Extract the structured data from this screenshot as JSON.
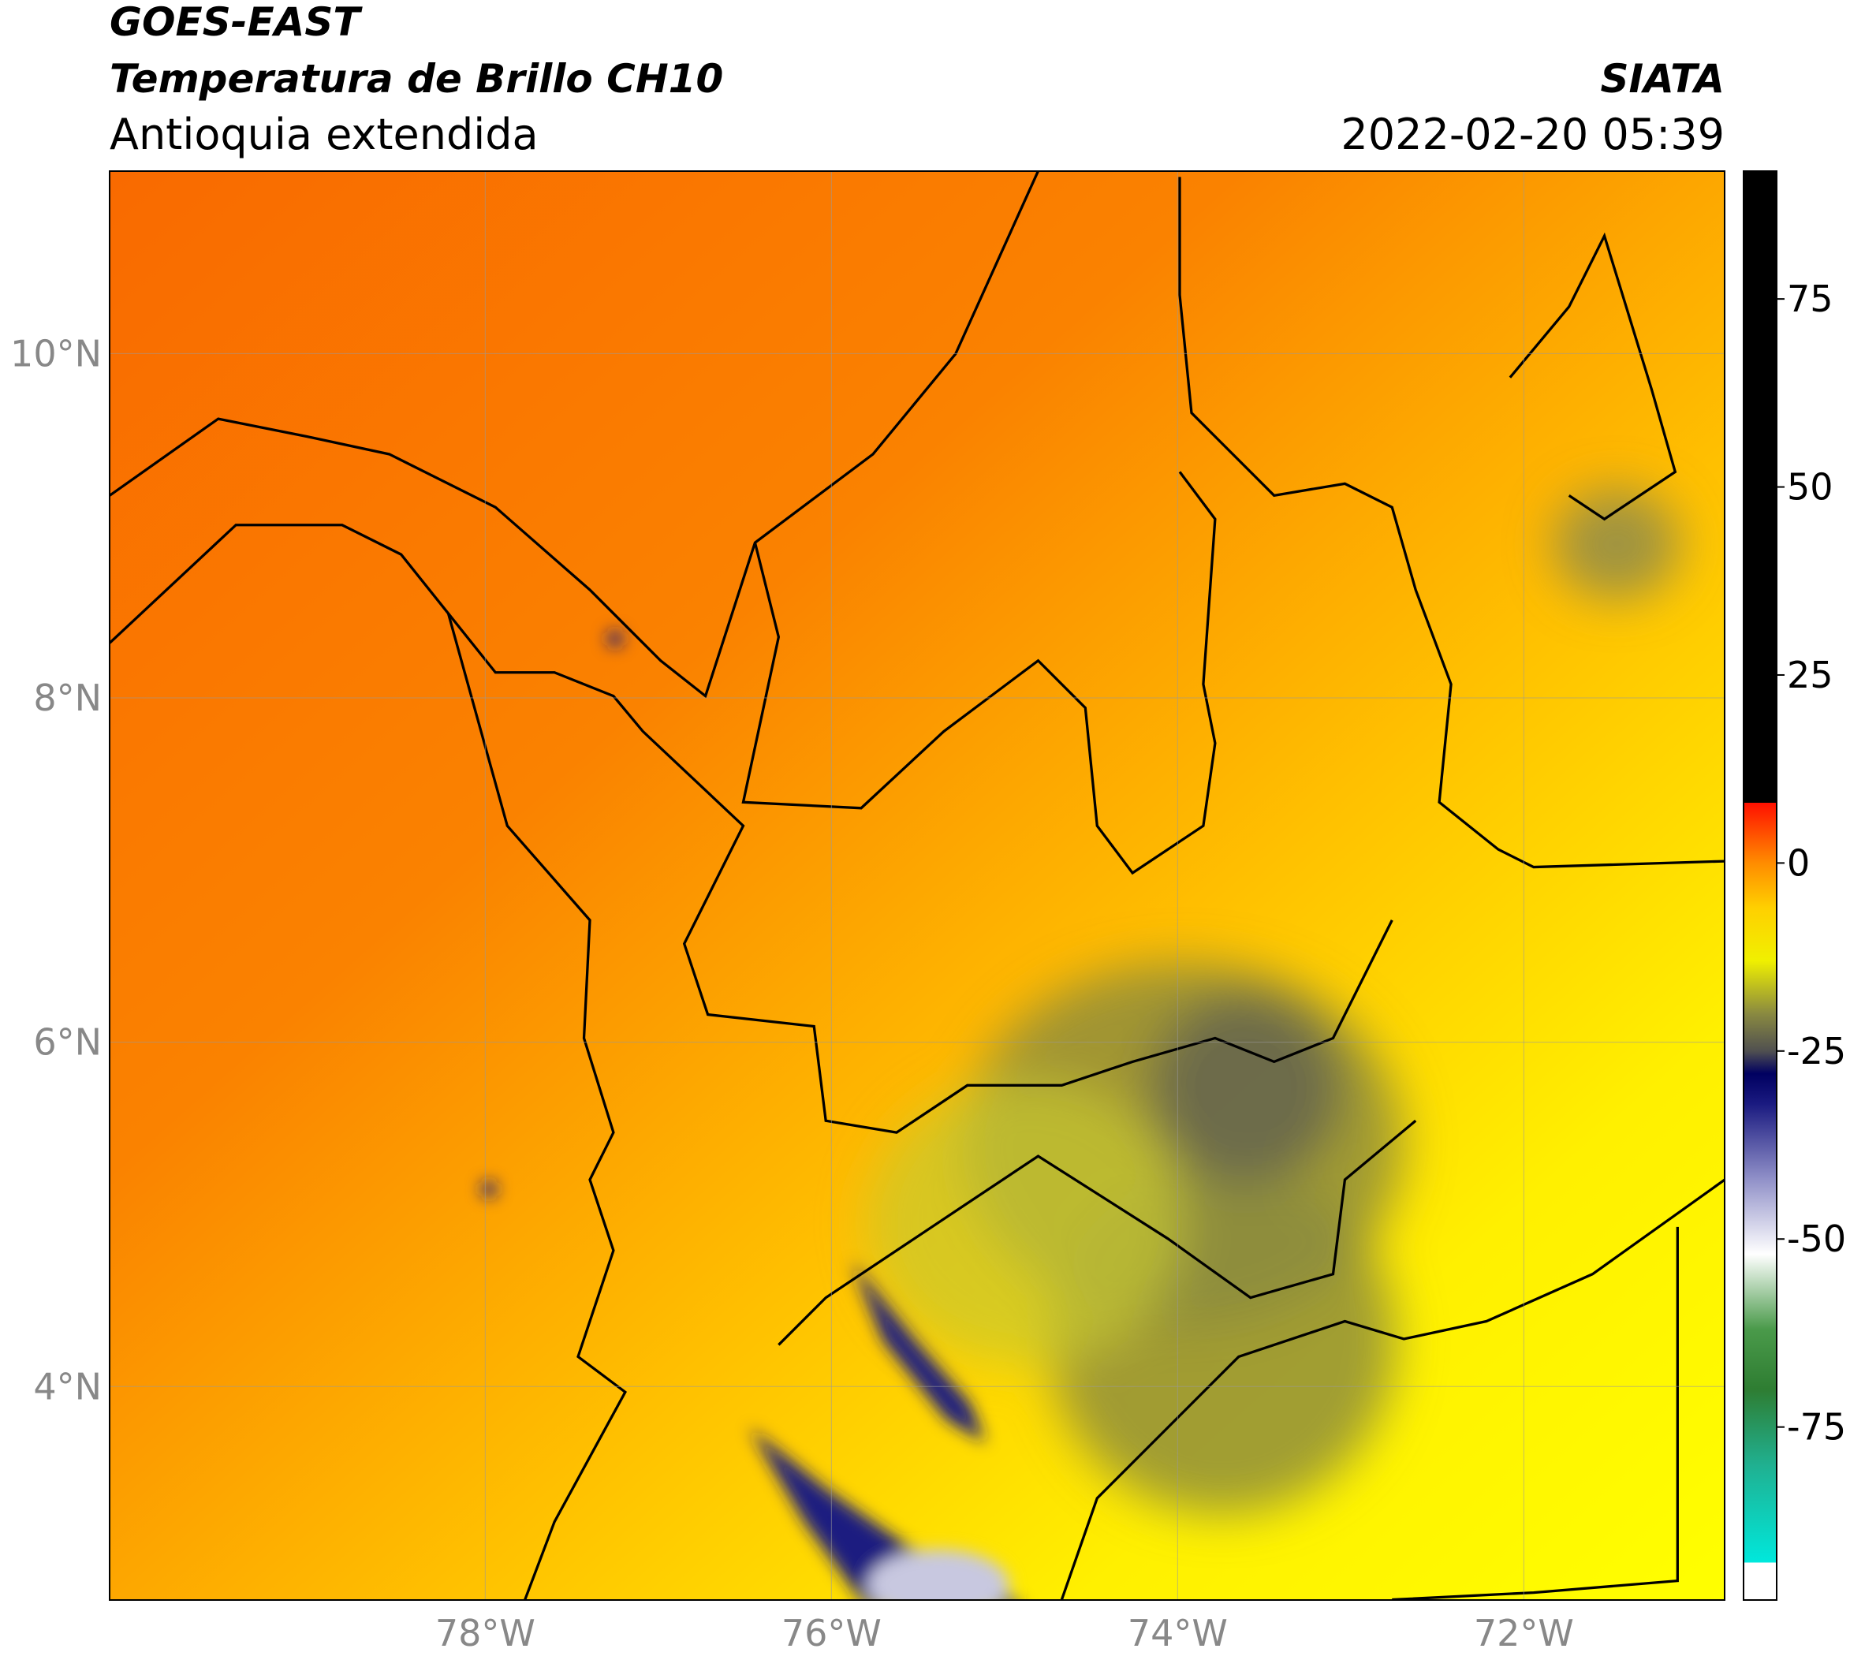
{
  "header": {
    "title": "GOES-EAST",
    "subtitle": "Temperatura de Brillo CH10",
    "region": "Antioquia extendida",
    "source": "SIATA",
    "datetime": "2022-02-20 05:39"
  },
  "map": {
    "lonlim": [
      -80.17,
      -70.84
    ],
    "latlim": [
      2.76,
      11.06
    ],
    "lonticks": [
      {
        "value": -78,
        "label": "78°W"
      },
      {
        "value": -76,
        "label": "76°W"
      },
      {
        "value": -74,
        "label": "74°W"
      },
      {
        "value": -72,
        "label": "72°W"
      }
    ],
    "latticks": [
      {
        "value": 10,
        "label": "10°N"
      },
      {
        "value": 8,
        "label": "8°N"
      },
      {
        "value": 6,
        "label": "6°N"
      },
      {
        "value": 4,
        "label": "4°N"
      }
    ],
    "grid": true
  },
  "colorbar": {
    "lim": [
      -98,
      92
    ],
    "ticks": [
      75,
      50,
      25,
      0,
      -25,
      -50,
      -75
    ],
    "colormap": [
      [
        -98,
        "#ffffff"
      ],
      [
        -93,
        "#ffffff"
      ],
      [
        -93,
        "#00e8dc"
      ],
      [
        -80,
        "#20b090"
      ],
      [
        -70,
        "#2e7d32"
      ],
      [
        -62,
        "#4a9a4a"
      ],
      [
        -52,
        "#ffffff"
      ],
      [
        -42,
        "#9090c8"
      ],
      [
        -32,
        "#1a1a80"
      ],
      [
        -28,
        "#000060"
      ],
      [
        -25,
        "#505050"
      ],
      [
        -20,
        "#8a8a40"
      ],
      [
        -13,
        "#f0f000"
      ],
      [
        -6,
        "#ffd000"
      ],
      [
        0,
        "#ff8c00"
      ],
      [
        8,
        "#ff1000"
      ],
      [
        8,
        "#000000"
      ],
      [
        92,
        "#000000"
      ]
    ]
  }
}
